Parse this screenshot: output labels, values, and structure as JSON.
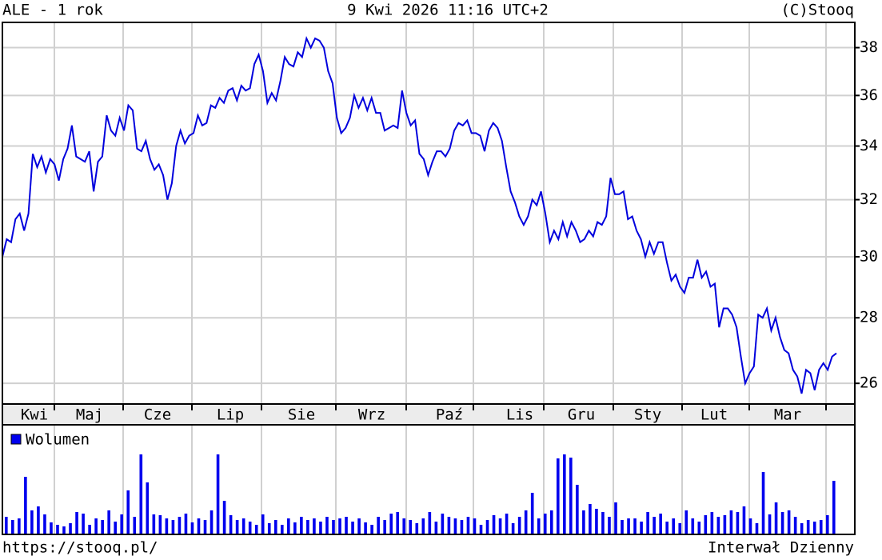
{
  "header": {
    "left": "ALE - 1 rok",
    "center": "9 Kwi 2026 11:16 UTC+2",
    "right": "(C)Stooq"
  },
  "chart_data": [
    {
      "type": "line",
      "color": "#0000dd",
      "log_scale": true,
      "grid": true,
      "ylim": [
        25.4,
        39.1
      ],
      "yticks": [
        26,
        28,
        30,
        32,
        34,
        36,
        38
      ],
      "months": [
        "Kwi",
        "Maj",
        "Cze",
        "Lip",
        "Sie",
        "Wrz",
        "Paź",
        "Lis",
        "Gru",
        "Sty",
        "Lut",
        "Mar"
      ],
      "values": [
        30.0,
        30.6,
        30.5,
        31.3,
        31.5,
        30.9,
        31.5,
        33.7,
        33.2,
        33.6,
        33.0,
        33.5,
        33.3,
        32.7,
        33.5,
        33.9,
        34.8,
        33.6,
        33.5,
        33.4,
        33.8,
        32.3,
        33.4,
        33.6,
        35.2,
        34.6,
        34.4,
        35.1,
        34.6,
        35.6,
        35.4,
        33.9,
        33.8,
        34.2,
        33.5,
        33.1,
        33.3,
        32.9,
        32.0,
        32.6,
        34.0,
        34.6,
        34.1,
        34.4,
        34.5,
        35.2,
        34.8,
        34.9,
        35.6,
        35.5,
        35.9,
        35.7,
        36.2,
        36.3,
        35.8,
        36.4,
        36.2,
        36.3,
        37.3,
        37.7,
        37.0,
        35.7,
        36.1,
        35.8,
        36.6,
        37.6,
        37.3,
        37.2,
        37.8,
        37.6,
        38.4,
        38.0,
        38.4,
        38.3,
        38.0,
        37.0,
        36.5,
        35.1,
        34.5,
        34.7,
        35.1,
        36.0,
        35.5,
        35.9,
        35.4,
        35.9,
        35.3,
        35.3,
        34.6,
        34.7,
        34.8,
        34.7,
        36.2,
        35.3,
        34.8,
        35.0,
        33.7,
        33.5,
        32.9,
        33.4,
        33.8,
        33.8,
        33.6,
        33.9,
        34.6,
        34.9,
        34.8,
        35.0,
        34.5,
        34.5,
        34.4,
        33.8,
        34.6,
        34.9,
        34.7,
        34.2,
        33.2,
        32.3,
        31.9,
        31.4,
        31.1,
        31.4,
        32.0,
        31.8,
        32.3,
        31.5,
        30.5,
        30.9,
        30.6,
        31.2,
        30.7,
        31.2,
        30.9,
        30.5,
        30.6,
        30.9,
        30.7,
        31.2,
        31.1,
        31.4,
        32.8,
        32.2,
        32.2,
        32.3,
        31.3,
        31.4,
        30.9,
        30.6,
        30.0,
        30.5,
        30.1,
        30.5,
        30.5,
        29.8,
        29.2,
        29.4,
        29.0,
        28.8,
        29.3,
        29.3,
        29.9,
        29.3,
        29.5,
        29.0,
        29.1,
        27.7,
        28.3,
        28.3,
        28.1,
        27.7,
        26.8,
        26.0,
        26.3,
        26.5,
        28.1,
        28.0,
        28.3,
        27.6,
        28.0,
        27.4,
        27.0,
        26.9,
        26.4,
        26.2,
        25.7,
        26.4,
        26.3,
        25.8,
        26.4,
        26.6,
        26.4,
        26.8,
        26.9
      ]
    },
    {
      "type": "bar",
      "series": [
        {
          "name": "Wolumen",
          "color": "#0000ee",
          "values": [
            22,
            18,
            20,
            72,
            30,
            35,
            25,
            15,
            12,
            10,
            14,
            28,
            26,
            12,
            20,
            18,
            30,
            16,
            25,
            55,
            22,
            100,
            65,
            25,
            24,
            20,
            18,
            22,
            26,
            15,
            20,
            18,
            30,
            100,
            42,
            24,
            18,
            20,
            16,
            12,
            25,
            14,
            18,
            12,
            20,
            15,
            22,
            18,
            20,
            16,
            22,
            18,
            20,
            22,
            16,
            20,
            15,
            12,
            22,
            18,
            26,
            28,
            20,
            18,
            14,
            20,
            28,
            16,
            26,
            22,
            20,
            18,
            22,
            20,
            12,
            18,
            24,
            20,
            26,
            14,
            22,
            30,
            52,
            20,
            26,
            30,
            95,
            100,
            96,
            62,
            30,
            38,
            32,
            28,
            22,
            40,
            18,
            20,
            20,
            16,
            28,
            22,
            26,
            16,
            20,
            14,
            30,
            20,
            16,
            24,
            28,
            22,
            24,
            30,
            28,
            35,
            20,
            14,
            78,
            25,
            40,
            28,
            30,
            22,
            14,
            18,
            16,
            18,
            24,
            67
          ]
        }
      ]
    }
  ],
  "footer": {
    "left": "https://stooq.pl/",
    "right": "Interwał Dzienny"
  }
}
